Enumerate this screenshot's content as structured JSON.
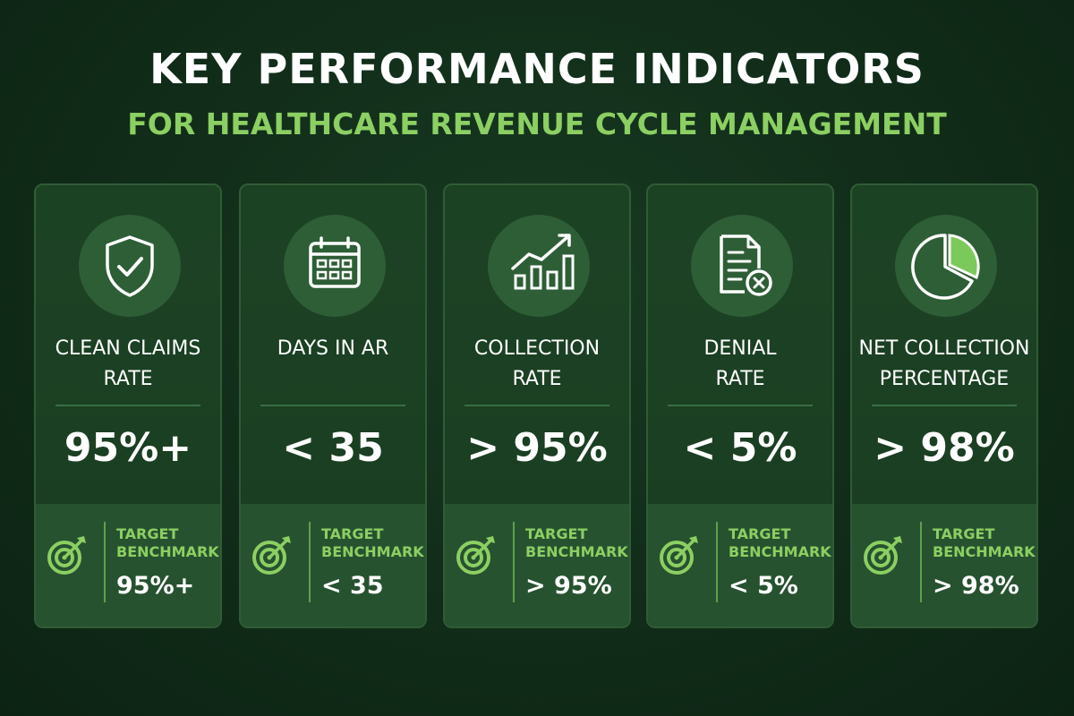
{
  "header": {
    "title": "KEY PERFORMANCE INDICATORS",
    "subtitle": "FOR HEALTHCARE REVENUE CYCLE MANAGEMENT"
  },
  "colors": {
    "background": "#112c19",
    "card": "#1c4224",
    "accent_green": "#8ccf62",
    "text": "#ffffff"
  },
  "cards": [
    {
      "icon": "shield-check-icon",
      "label": "CLEAN CLAIMS\nRATE",
      "value": "95%+",
      "target_label": "TARGET\nBENCHMARK",
      "target_value": "95%+"
    },
    {
      "icon": "calendar-icon",
      "label": "DAYS IN AR",
      "value": "< 35",
      "target_label": "TARGET\nBENCHMARK",
      "target_value": "< 35"
    },
    {
      "icon": "trending-chart-icon",
      "label": "COLLECTION\nRATE",
      "value": "> 95%",
      "target_label": "TARGET\nBENCHMARK",
      "target_value": "> 95%"
    },
    {
      "icon": "denied-document-icon",
      "label": "DENIAL\nRATE",
      "value": "< 5%",
      "target_label": "TARGET\nBENCHMARK",
      "target_value": "< 5%"
    },
    {
      "icon": "pie-chart-icon",
      "label": "NET COLLECTION\nPERCENTAGE",
      "value": "> 98%",
      "target_label": "TARGET\nBENCHMARK",
      "target_value": "> 98%"
    }
  ]
}
